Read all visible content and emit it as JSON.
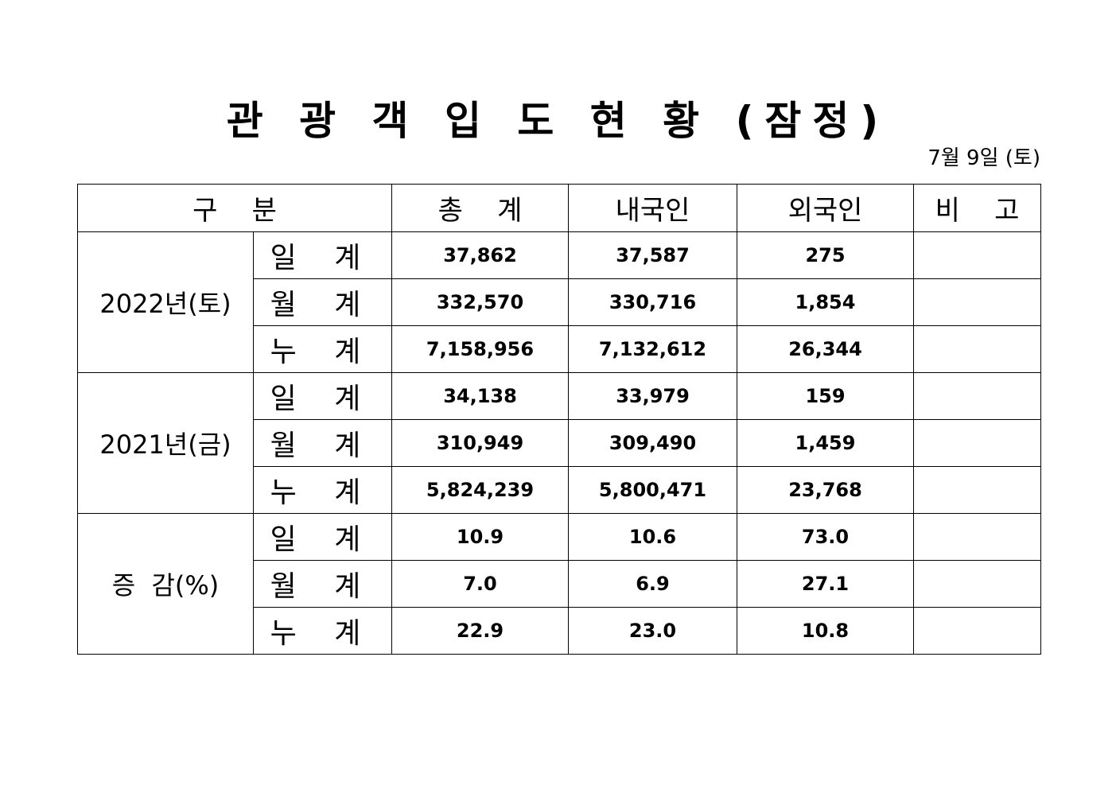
{
  "title": "관 광 객 입 도 현 황 (잠정)",
  "date": "7월  9일  (토)",
  "headers": [
    "구    분",
    "총    계",
    "내국인",
    "외국인",
    "비    고"
  ],
  "groups": [
    {
      "label": "2022년(토)",
      "rows": [
        {
          "sub": "일 계",
          "total": "37,862",
          "domestic": "37,587",
          "foreign": "275",
          "note": ""
        },
        {
          "sub": "월 계",
          "total": "332,570",
          "domestic": "330,716",
          "foreign": "1,854",
          "note": ""
        },
        {
          "sub": "누 계",
          "total": "7,158,956",
          "domestic": "7,132,612",
          "foreign": "26,344",
          "note": ""
        }
      ]
    },
    {
      "label": "2021년(금)",
      "rows": [
        {
          "sub": "일 계",
          "total": "34,138",
          "domestic": "33,979",
          "foreign": "159",
          "note": ""
        },
        {
          "sub": "월 계",
          "total": "310,949",
          "domestic": "309,490",
          "foreign": "1,459",
          "note": ""
        },
        {
          "sub": "누 계",
          "total": "5,824,239",
          "domestic": "5,800,471",
          "foreign": "23,768",
          "note": ""
        }
      ]
    },
    {
      "label": "증  감(%)",
      "rows": [
        {
          "sub": "일 계",
          "total": "10.9",
          "domestic": "10.6",
          "foreign": "73.0",
          "note": ""
        },
        {
          "sub": "월 계",
          "total": "7.0",
          "domestic": "6.9",
          "foreign": "27.1",
          "note": ""
        },
        {
          "sub": "누 계",
          "total": "22.9",
          "domestic": "23.0",
          "foreign": "10.8",
          "note": ""
        }
      ]
    }
  ]
}
